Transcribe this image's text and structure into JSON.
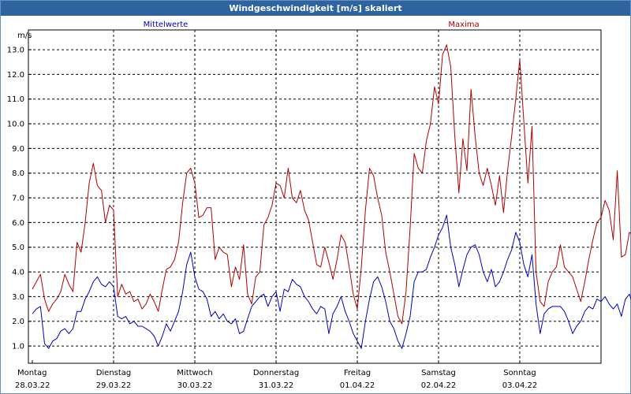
{
  "chart_data": {
    "type": "line",
    "title": "Windgeschwindigkeit [m/s] skaliert",
    "ylabel": "m/s",
    "ylim": [
      0.3,
      13.8
    ],
    "y_ticks": [
      "1.0",
      "2.0",
      "3.0",
      "4.0",
      "5.0",
      "6.0",
      "7.0",
      "8.0",
      "9.0",
      "10.0",
      "11.0",
      "12.0",
      "13.0"
    ],
    "x_days": [
      {
        "day": "Montag",
        "date": "28.03.22"
      },
      {
        "day": "Dienstag",
        "date": "29.03.22"
      },
      {
        "day": "Mittwoch",
        "date": "30.03.22"
      },
      {
        "day": "Donnerstag",
        "date": "31.03.22"
      },
      {
        "day": "Freitag",
        "date": "01.04.22"
      },
      {
        "day": "Samstag",
        "date": "02.04.22"
      },
      {
        "day": "Sonntag",
        "date": "03.04.22"
      }
    ],
    "grid": true,
    "series": [
      {
        "name": "Mittelwerte",
        "color": "#0000c0",
        "points": [
          [
            0,
            2.3
          ],
          [
            0.05,
            2.5
          ],
          [
            0.1,
            2.6
          ],
          [
            0.15,
            1.1
          ],
          [
            0.2,
            0.9
          ],
          [
            0.25,
            1.2
          ],
          [
            0.3,
            1.3
          ],
          [
            0.35,
            1.6
          ],
          [
            0.4,
            1.7
          ],
          [
            0.45,
            1.5
          ],
          [
            0.5,
            1.7
          ],
          [
            0.55,
            2.4
          ],
          [
            0.6,
            2.4
          ],
          [
            0.65,
            2.9
          ],
          [
            0.7,
            3.2
          ],
          [
            0.75,
            3.6
          ],
          [
            0.8,
            3.8
          ],
          [
            0.85,
            3.5
          ],
          [
            0.9,
            3.4
          ],
          [
            0.95,
            3.6
          ],
          [
            1.0,
            3.4
          ],
          [
            1.05,
            2.2
          ],
          [
            1.1,
            2.1
          ],
          [
            1.15,
            2.2
          ],
          [
            1.2,
            1.9
          ],
          [
            1.25,
            2.0
          ],
          [
            1.3,
            1.8
          ],
          [
            1.35,
            1.8
          ],
          [
            1.4,
            1.7
          ],
          [
            1.45,
            1.6
          ],
          [
            1.5,
            1.4
          ],
          [
            1.55,
            1.0
          ],
          [
            1.6,
            1.4
          ],
          [
            1.65,
            1.9
          ],
          [
            1.7,
            1.6
          ],
          [
            1.75,
            2.0
          ],
          [
            1.8,
            2.4
          ],
          [
            1.85,
            3.2
          ],
          [
            1.9,
            4.3
          ],
          [
            1.95,
            4.8
          ],
          [
            2.0,
            3.8
          ],
          [
            2.05,
            3.3
          ],
          [
            2.1,
            3.2
          ],
          [
            2.15,
            2.9
          ],
          [
            2.2,
            2.2
          ],
          [
            2.25,
            2.4
          ],
          [
            2.3,
            2.1
          ],
          [
            2.35,
            2.3
          ],
          [
            2.4,
            2.0
          ],
          [
            2.45,
            1.9
          ],
          [
            2.5,
            2.1
          ],
          [
            2.55,
            1.5
          ],
          [
            2.6,
            1.6
          ],
          [
            2.65,
            2.1
          ],
          [
            2.7,
            2.6
          ],
          [
            2.75,
            2.8
          ],
          [
            2.8,
            3.0
          ],
          [
            2.85,
            3.1
          ],
          [
            2.9,
            2.6
          ],
          [
            2.95,
            3.0
          ],
          [
            3.0,
            3.2
          ],
          [
            3.05,
            2.4
          ],
          [
            3.1,
            3.3
          ],
          [
            3.15,
            3.2
          ],
          [
            3.2,
            3.7
          ],
          [
            3.25,
            3.5
          ],
          [
            3.3,
            3.4
          ],
          [
            3.35,
            3.0
          ],
          [
            3.4,
            2.8
          ],
          [
            3.45,
            2.5
          ],
          [
            3.5,
            2.3
          ],
          [
            3.55,
            2.6
          ],
          [
            3.6,
            2.5
          ],
          [
            3.65,
            1.5
          ],
          [
            3.7,
            2.3
          ],
          [
            3.75,
            2.6
          ],
          [
            3.8,
            3.0
          ],
          [
            3.85,
            2.4
          ],
          [
            3.9,
            2.0
          ],
          [
            3.95,
            1.5
          ],
          [
            4.0,
            1.2
          ],
          [
            4.05,
            0.9
          ],
          [
            4.1,
            2.0
          ],
          [
            4.15,
            2.9
          ],
          [
            4.2,
            3.6
          ],
          [
            4.25,
            3.8
          ],
          [
            4.3,
            3.4
          ],
          [
            4.35,
            2.8
          ],
          [
            4.4,
            2.0
          ],
          [
            4.45,
            1.7
          ],
          [
            4.5,
            1.2
          ],
          [
            4.55,
            0.9
          ],
          [
            4.6,
            1.5
          ],
          [
            4.65,
            2.2
          ],
          [
            4.7,
            3.6
          ],
          [
            4.75,
            4.0
          ],
          [
            4.8,
            4.0
          ],
          [
            4.85,
            4.1
          ],
          [
            4.9,
            4.6
          ],
          [
            4.95,
            5.0
          ],
          [
            5.0,
            5.5
          ],
          [
            5.05,
            5.8
          ],
          [
            5.1,
            6.3
          ],
          [
            5.15,
            5.0
          ],
          [
            5.2,
            4.3
          ],
          [
            5.25,
            3.4
          ],
          [
            5.3,
            4.1
          ],
          [
            5.35,
            4.7
          ],
          [
            5.4,
            5.0
          ],
          [
            5.45,
            5.1
          ],
          [
            5.5,
            4.7
          ],
          [
            5.55,
            4.0
          ],
          [
            5.6,
            3.6
          ],
          [
            5.65,
            4.1
          ],
          [
            5.7,
            3.4
          ],
          [
            5.75,
            3.6
          ],
          [
            5.8,
            4.0
          ],
          [
            5.85,
            4.5
          ],
          [
            5.9,
            4.9
          ],
          [
            5.95,
            5.6
          ],
          [
            6.0,
            5.2
          ],
          [
            6.05,
            4.3
          ],
          [
            6.1,
            3.8
          ],
          [
            6.15,
            4.7
          ],
          [
            6.2,
            2.7
          ],
          [
            6.25,
            1.5
          ],
          [
            6.3,
            2.3
          ],
          [
            6.35,
            2.5
          ],
          [
            6.4,
            2.6
          ],
          [
            6.45,
            2.6
          ],
          [
            6.5,
            2.6
          ],
          [
            6.55,
            2.4
          ],
          [
            6.6,
            2.0
          ],
          [
            6.65,
            1.5
          ],
          [
            6.7,
            1.8
          ],
          [
            6.75,
            2.0
          ],
          [
            6.8,
            2.4
          ],
          [
            6.85,
            2.6
          ],
          [
            6.9,
            2.5
          ],
          [
            6.95,
            2.9
          ],
          [
            7.0,
            2.8
          ],
          [
            7.05,
            3.0
          ],
          [
            7.1,
            2.7
          ],
          [
            7.15,
            2.5
          ],
          [
            7.2,
            2.7
          ],
          [
            7.25,
            2.2
          ],
          [
            7.3,
            2.9
          ],
          [
            7.35,
            3.1
          ],
          [
            7.4,
            2.6
          ]
        ]
      },
      {
        "name": "Maxima",
        "color": "#b00000",
        "points": [
          [
            0,
            3.3
          ],
          [
            0.05,
            3.6
          ],
          [
            0.1,
            3.9
          ],
          [
            0.15,
            2.9
          ],
          [
            0.2,
            2.4
          ],
          [
            0.25,
            2.7
          ],
          [
            0.3,
            2.9
          ],
          [
            0.35,
            3.2
          ],
          [
            0.4,
            3.9
          ],
          [
            0.45,
            3.5
          ],
          [
            0.5,
            3.2
          ],
          [
            0.55,
            5.2
          ],
          [
            0.6,
            4.8
          ],
          [
            0.65,
            6.0
          ],
          [
            0.7,
            7.6
          ],
          [
            0.75,
            8.4
          ],
          [
            0.8,
            7.5
          ],
          [
            0.85,
            7.3
          ],
          [
            0.9,
            6.0
          ],
          [
            0.95,
            6.7
          ],
          [
            1.0,
            6.5
          ],
          [
            1.05,
            3.0
          ],
          [
            1.1,
            3.5
          ],
          [
            1.15,
            3.1
          ],
          [
            1.2,
            3.2
          ],
          [
            1.25,
            2.8
          ],
          [
            1.3,
            2.9
          ],
          [
            1.35,
            2.5
          ],
          [
            1.4,
            2.7
          ],
          [
            1.45,
            3.1
          ],
          [
            1.5,
            2.8
          ],
          [
            1.55,
            2.4
          ],
          [
            1.6,
            3.3
          ],
          [
            1.65,
            4.1
          ],
          [
            1.7,
            4.2
          ],
          [
            1.75,
            4.5
          ],
          [
            1.8,
            5.2
          ],
          [
            1.85,
            6.8
          ],
          [
            1.9,
            8.0
          ],
          [
            1.95,
            8.2
          ],
          [
            2.0,
            7.6
          ],
          [
            2.05,
            6.2
          ],
          [
            2.1,
            6.3
          ],
          [
            2.15,
            6.6
          ],
          [
            2.2,
            6.6
          ],
          [
            2.25,
            4.5
          ],
          [
            2.3,
            5.0
          ],
          [
            2.35,
            4.8
          ],
          [
            2.4,
            4.7
          ],
          [
            2.45,
            3.4
          ],
          [
            2.5,
            4.2
          ],
          [
            2.55,
            3.7
          ],
          [
            2.6,
            5.1
          ],
          [
            2.65,
            3.1
          ],
          [
            2.7,
            2.7
          ],
          [
            2.75,
            3.8
          ],
          [
            2.8,
            4.0
          ],
          [
            2.85,
            5.9
          ],
          [
            2.9,
            6.2
          ],
          [
            2.95,
            6.7
          ],
          [
            3.0,
            7.6
          ],
          [
            3.05,
            7.5
          ],
          [
            3.1,
            7.0
          ],
          [
            3.15,
            8.2
          ],
          [
            3.2,
            7.0
          ],
          [
            3.25,
            6.8
          ],
          [
            3.3,
            7.3
          ],
          [
            3.35,
            6.5
          ],
          [
            3.4,
            6.1
          ],
          [
            3.45,
            5.2
          ],
          [
            3.5,
            4.3
          ],
          [
            3.55,
            4.2
          ],
          [
            3.6,
            5.0
          ],
          [
            3.65,
            4.4
          ],
          [
            3.7,
            3.7
          ],
          [
            3.75,
            4.5
          ],
          [
            3.8,
            5.5
          ],
          [
            3.85,
            5.2
          ],
          [
            3.9,
            4.2
          ],
          [
            3.95,
            3.1
          ],
          [
            4.0,
            2.5
          ],
          [
            4.05,
            4.2
          ],
          [
            4.1,
            6.5
          ],
          [
            4.15,
            8.2
          ],
          [
            4.2,
            7.9
          ],
          [
            4.25,
            7.0
          ],
          [
            4.3,
            6.3
          ],
          [
            4.35,
            4.8
          ],
          [
            4.4,
            4.0
          ],
          [
            4.45,
            3.1
          ],
          [
            4.5,
            2.2
          ],
          [
            4.55,
            1.9
          ],
          [
            4.6,
            3.2
          ],
          [
            4.65,
            5.8
          ],
          [
            4.7,
            8.8
          ],
          [
            4.75,
            8.2
          ],
          [
            4.8,
            8.0
          ],
          [
            4.85,
            9.3
          ],
          [
            4.9,
            10.0
          ],
          [
            4.95,
            11.5
          ],
          [
            5.0,
            10.8
          ],
          [
            5.05,
            12.8
          ],
          [
            5.1,
            13.2
          ],
          [
            5.15,
            12.3
          ],
          [
            5.2,
            9.5
          ],
          [
            5.25,
            7.2
          ],
          [
            5.3,
            9.4
          ],
          [
            5.35,
            8.1
          ],
          [
            5.4,
            11.4
          ],
          [
            5.45,
            9.5
          ],
          [
            5.5,
            8.0
          ],
          [
            5.55,
            7.5
          ],
          [
            5.6,
            8.2
          ],
          [
            5.65,
            7.5
          ],
          [
            5.7,
            6.7
          ],
          [
            5.75,
            7.9
          ],
          [
            5.8,
            6.4
          ],
          [
            5.85,
            8.1
          ],
          [
            5.9,
            9.5
          ],
          [
            5.95,
            11.0
          ],
          [
            6.0,
            12.6
          ],
          [
            6.05,
            10.1
          ],
          [
            6.1,
            7.6
          ],
          [
            6.15,
            9.9
          ],
          [
            6.2,
            4.0
          ],
          [
            6.25,
            2.8
          ],
          [
            6.3,
            2.6
          ],
          [
            6.35,
            3.6
          ],
          [
            6.4,
            4.0
          ],
          [
            6.45,
            4.2
          ],
          [
            6.5,
            5.1
          ],
          [
            6.55,
            4.2
          ],
          [
            6.6,
            4.0
          ],
          [
            6.65,
            3.8
          ],
          [
            6.7,
            3.3
          ],
          [
            6.75,
            2.8
          ],
          [
            6.8,
            3.6
          ],
          [
            6.85,
            4.5
          ],
          [
            6.9,
            5.3
          ],
          [
            6.95,
            6.0
          ],
          [
            7.0,
            6.2
          ],
          [
            7.05,
            6.9
          ],
          [
            7.1,
            6.5
          ],
          [
            7.15,
            5.3
          ],
          [
            7.2,
            8.1
          ],
          [
            7.25,
            4.6
          ],
          [
            7.3,
            4.7
          ],
          [
            7.35,
            5.6
          ],
          [
            7.4,
            5.5
          ]
        ]
      }
    ]
  }
}
